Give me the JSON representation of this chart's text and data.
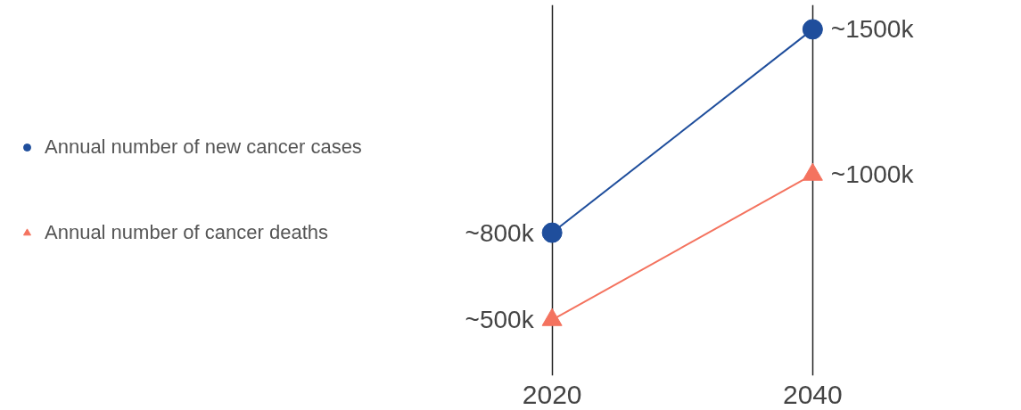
{
  "chart_data": {
    "type": "line",
    "categories": [
      "2020",
      "2040"
    ],
    "series": [
      {
        "name": "Annual number of new cancer cases",
        "color": "#1f4e9c",
        "marker": "circle",
        "values": [
          800,
          1500
        ],
        "value_labels": [
          "~800k",
          "~1500k"
        ]
      },
      {
        "name": "Annual number of cancer deaths",
        "color": "#f4735f",
        "marker": "triangle",
        "values": [
          500,
          1000
        ],
        "value_labels": [
          "~500k",
          "~1000k"
        ]
      }
    ],
    "grid": "x",
    "legend": "left",
    "tick_labels": "x"
  }
}
